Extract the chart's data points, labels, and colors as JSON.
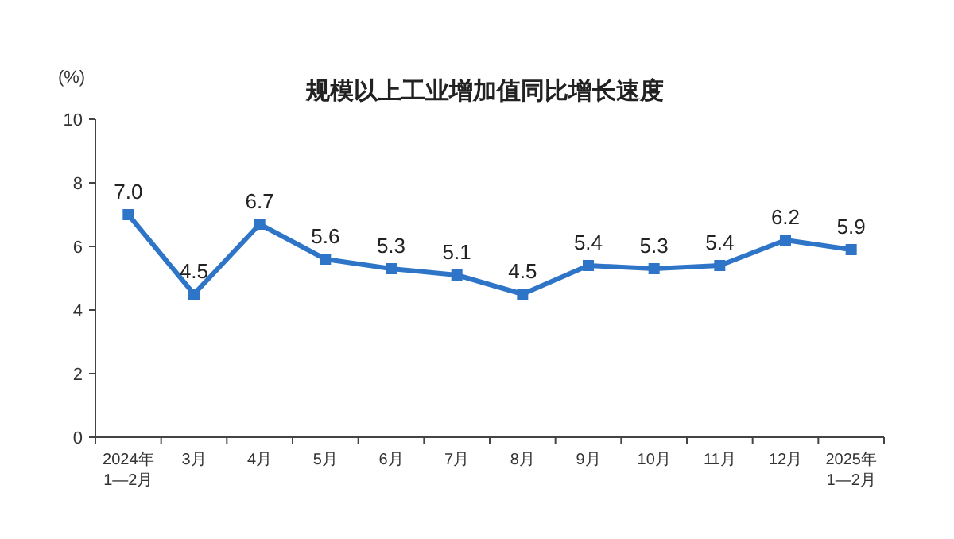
{
  "chart_data": {
    "type": "line",
    "title": "规模以上工业增加值同比增长速度",
    "ylabel": "(%)",
    "categories": [
      "2024年\n1—2月",
      "3月",
      "4月",
      "5月",
      "6月",
      "7月",
      "8月",
      "9月",
      "10月",
      "11月",
      "12月",
      "2025年\n1—2月"
    ],
    "series": [
      {
        "color": "#2e75c8",
        "values": [
          7.0,
          4.5,
          6.7,
          5.6,
          5.3,
          5.1,
          4.5,
          5.4,
          5.3,
          5.4,
          6.2,
          5.9
        ],
        "value_labels": [
          "7.0",
          "4.5",
          "6.7",
          "5.6",
          "5.3",
          "5.1",
          "4.5",
          "5.4",
          "5.3",
          "5.4",
          "6.2",
          "5.9"
        ]
      }
    ],
    "ylim": [
      0,
      10
    ],
    "yticks": [
      0,
      2,
      4,
      6,
      8,
      10
    ],
    "marker": "square",
    "line_style": "solid"
  }
}
